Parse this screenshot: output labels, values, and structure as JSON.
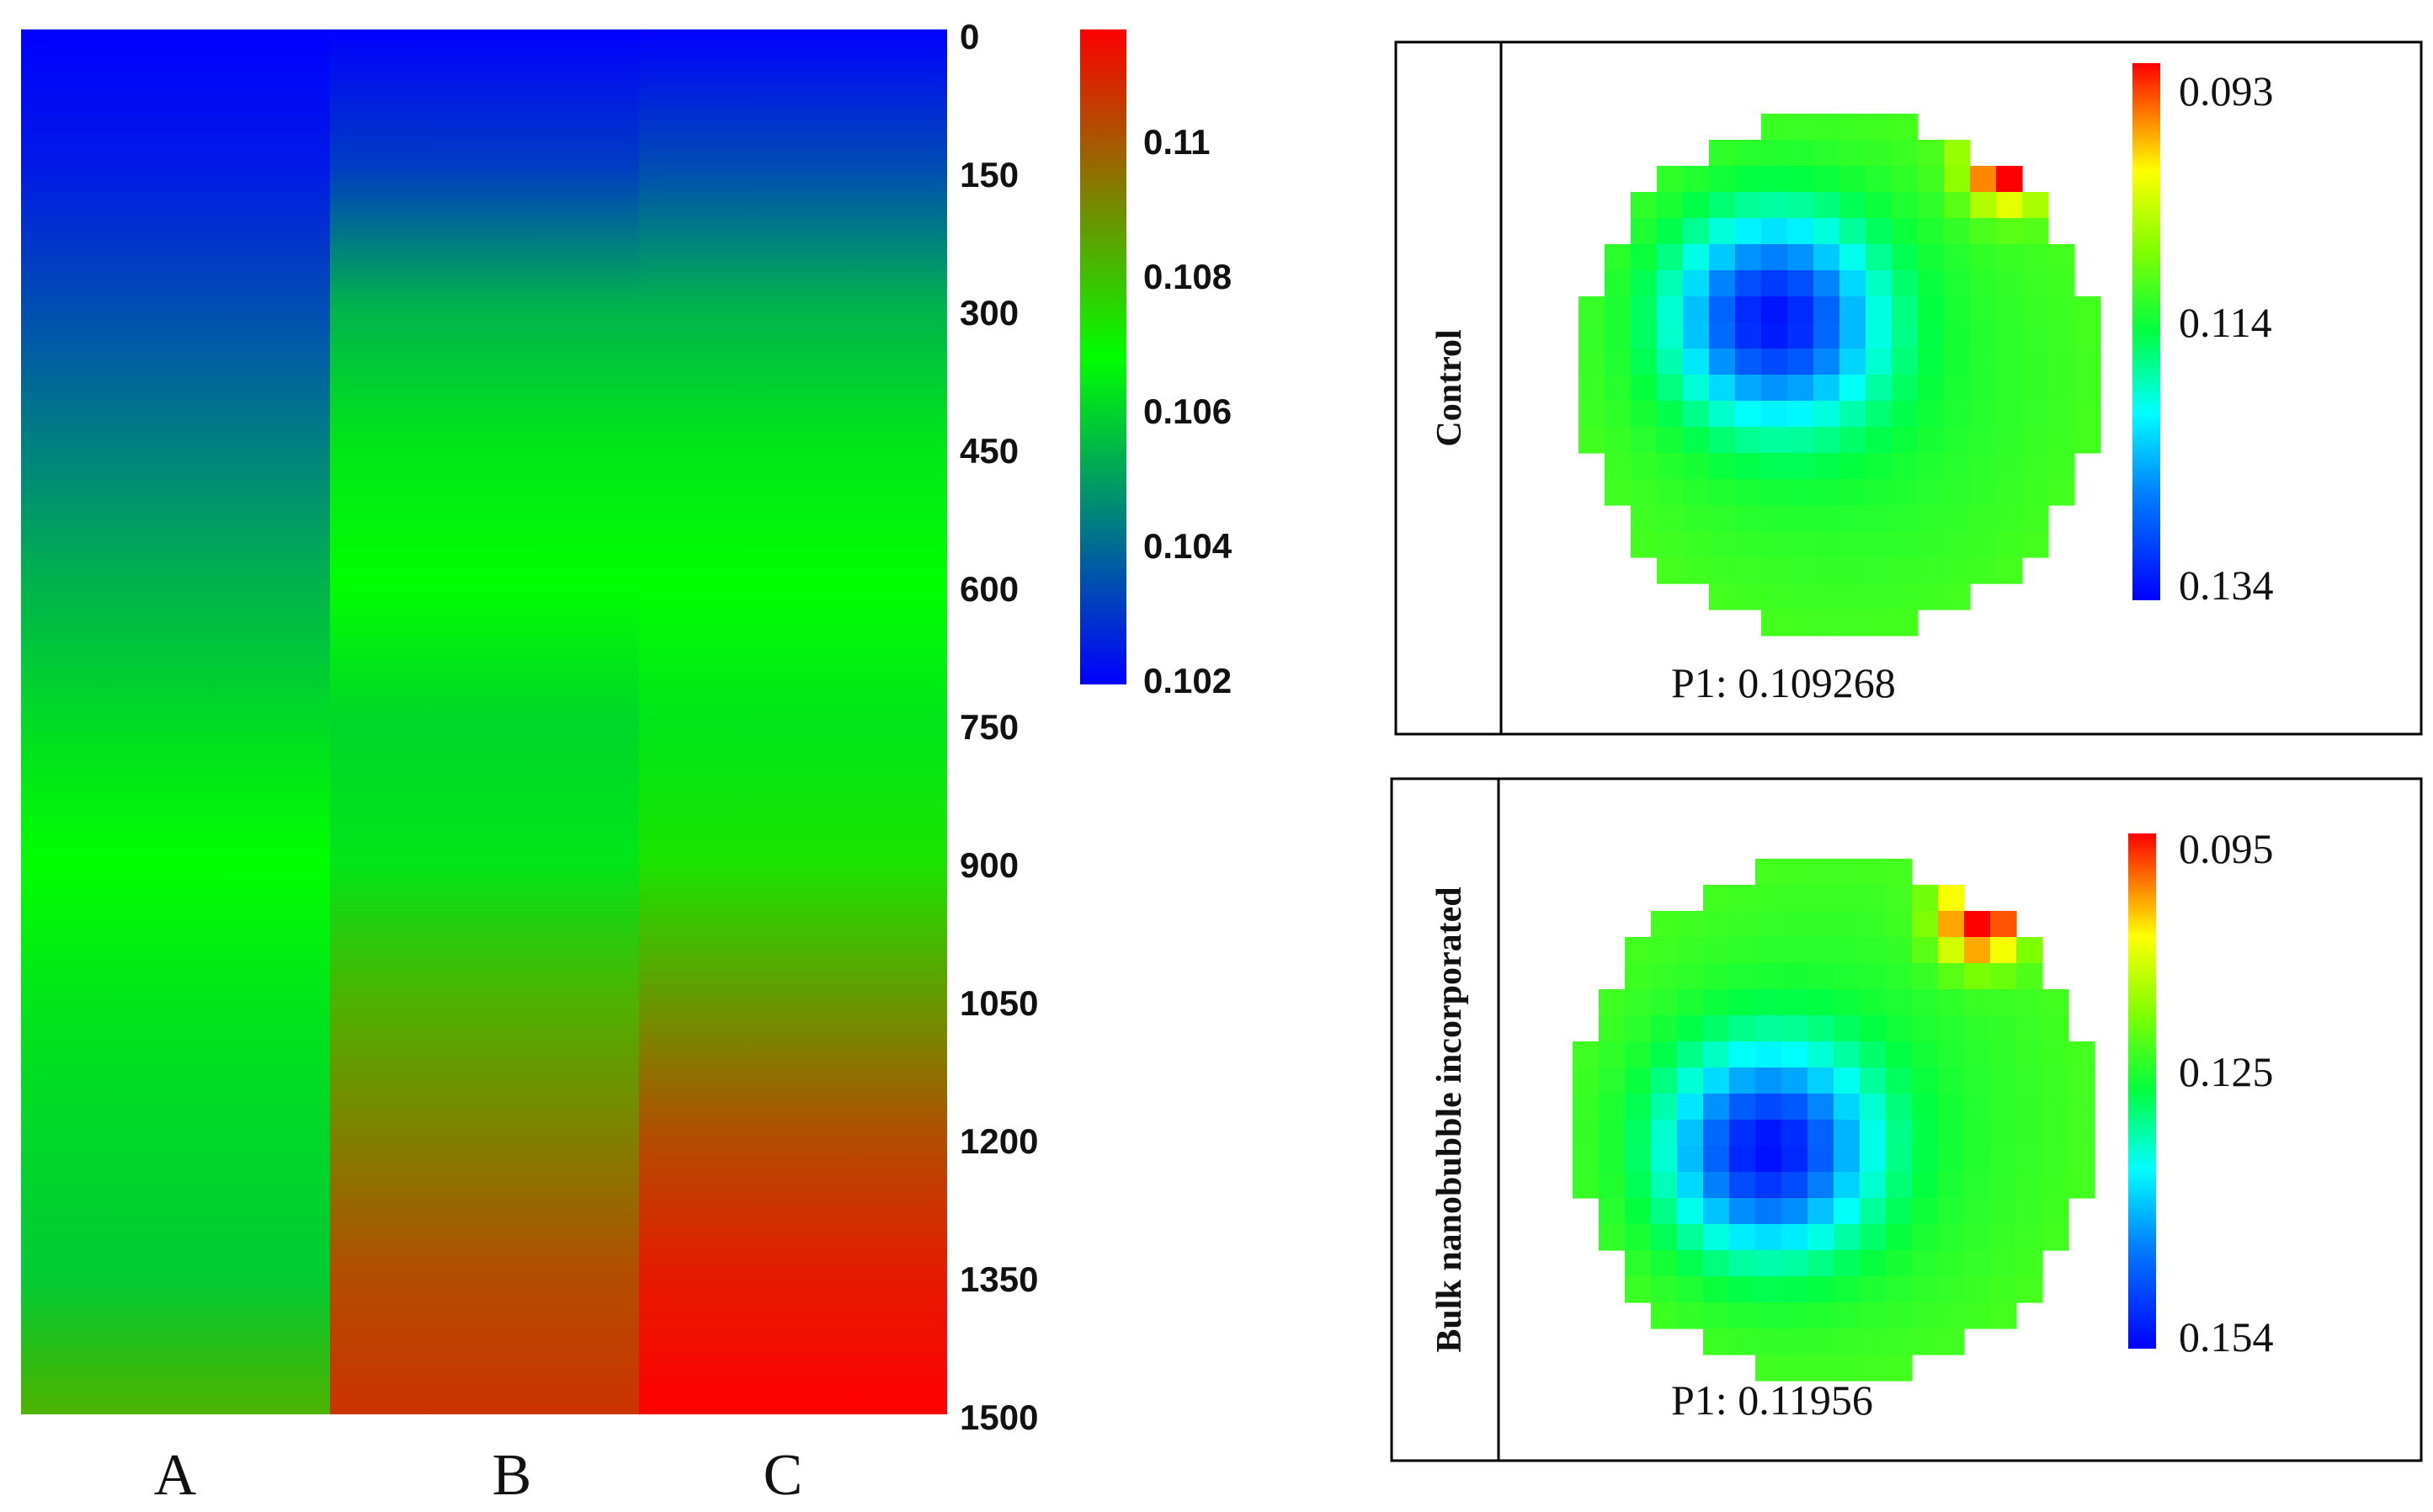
{
  "colors": {
    "low": "#0000ff",
    "mid": "#00ff00",
    "high": "#ff0000",
    "frame": "#000000"
  },
  "chart_data": [
    {
      "type": "heatmap",
      "title": "",
      "columns": [
        "A",
        "B",
        "C"
      ],
      "yticks": [
        "0",
        "150",
        "300",
        "450",
        "600",
        "750",
        "900",
        "1050",
        "1200",
        "1350",
        "1500"
      ],
      "ylim": [
        0,
        1500
      ],
      "colorbar": {
        "ticks": [
          "0.11",
          "0.108",
          "0.106",
          "0.104",
          "0.102"
        ],
        "range": [
          0.102,
          0.112
        ]
      },
      "profiles": [
        {
          "name": "A",
          "y": [
            0,
            150,
            300,
            450,
            600,
            750,
            900,
            1050,
            1200,
            1350,
            1500
          ],
          "values": [
            0.102,
            0.1025,
            0.1035,
            0.1045,
            0.1055,
            0.1063,
            0.107,
            0.1065,
            0.1062,
            0.106,
            0.1085
          ]
        },
        {
          "name": "B",
          "y": [
            0,
            150,
            300,
            450,
            600,
            750,
            900,
            1050,
            1200,
            1350,
            1500
          ],
          "values": [
            0.102,
            0.1032,
            0.1055,
            0.1065,
            0.107,
            0.1062,
            0.1065,
            0.1085,
            0.1095,
            0.1105,
            0.111
          ]
        },
        {
          "name": "C",
          "y": [
            0,
            150,
            300,
            450,
            600,
            750,
            900,
            1050,
            1200,
            1350,
            1500
          ],
          "values": [
            0.102,
            0.1035,
            0.1055,
            0.1065,
            0.107,
            0.1065,
            0.1075,
            0.109,
            0.1105,
            0.1115,
            0.112
          ]
        }
      ]
    },
    {
      "type": "heatmap",
      "label": "Control",
      "caption": "P1: 0.109268",
      "colorbar": {
        "top": "0.093",
        "mid": "0.114",
        "bottom": "0.134"
      },
      "hot_center": [
        0.37,
        0.39
      ],
      "warm_spot": [
        0.82,
        0.1
      ]
    },
    {
      "type": "heatmap",
      "label": "Bulk nanobubble incorporated",
      "caption": "P1: 0.11956",
      "colorbar": {
        "top": "0.095",
        "mid": "0.125",
        "bottom": "0.154"
      },
      "hot_center": [
        0.37,
        0.56
      ],
      "warm_spot": [
        0.78,
        0.12
      ]
    }
  ]
}
